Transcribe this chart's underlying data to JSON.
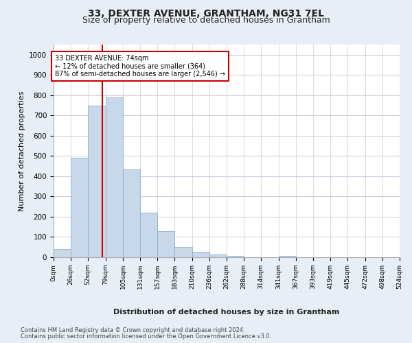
{
  "title1": "33, DEXTER AVENUE, GRANTHAM, NG31 7EL",
  "title2": "Size of property relative to detached houses in Grantham",
  "xlabel": "Distribution of detached houses by size in Grantham",
  "ylabel": "Number of detached properties",
  "bar_color": "#c8d8eb",
  "bar_edge_color": "#8ab0cb",
  "background_color": "#e8eef5",
  "plot_background": "#ffffff",
  "grid_color": "#c5cdd8",
  "annotation_text": "33 DEXTER AVENUE: 74sqm\n← 12% of detached houses are smaller (364)\n87% of semi-detached houses are larger (2,546) →",
  "annotation_box_color": "#ffffff",
  "annotation_border_color": "#cc0000",
  "property_line_x": 74,
  "property_line_color": "#cc0000",
  "bin_edges": [
    0,
    26,
    52,
    79,
    105,
    131,
    157,
    183,
    210,
    236,
    262,
    288,
    314,
    341,
    367,
    393,
    419,
    445,
    472,
    498,
    524
  ],
  "bin_labels": [
    "0sqm",
    "26sqm",
    "52sqm",
    "79sqm",
    "105sqm",
    "131sqm",
    "157sqm",
    "183sqm",
    "210sqm",
    "236sqm",
    "262sqm",
    "288sqm",
    "314sqm",
    "341sqm",
    "367sqm",
    "393sqm",
    "419sqm",
    "445sqm",
    "472sqm",
    "498sqm",
    "524sqm"
  ],
  "bar_heights": [
    42,
    490,
    750,
    790,
    435,
    220,
    130,
    52,
    28,
    14,
    7,
    0,
    0,
    7,
    0,
    0,
    0,
    0,
    0,
    0
  ],
  "ylim": [
    0,
    1050
  ],
  "yticks": [
    0,
    100,
    200,
    300,
    400,
    500,
    600,
    700,
    800,
    900,
    1000
  ],
  "footer1": "Contains HM Land Registry data © Crown copyright and database right 2024.",
  "footer2": "Contains public sector information licensed under the Open Government Licence v3.0.",
  "title_fontsize": 10,
  "subtitle_fontsize": 9
}
